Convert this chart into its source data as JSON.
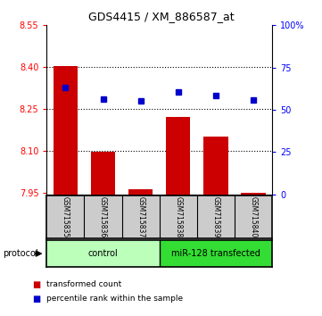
{
  "title": "GDS4415 / XM_886587_at",
  "samples": [
    "GSM715835",
    "GSM715836",
    "GSM715837",
    "GSM715838",
    "GSM715839",
    "GSM715840"
  ],
  "red_bar_top": [
    8.403,
    8.098,
    7.963,
    8.222,
    8.152,
    7.952
  ],
  "red_bar_bottom": 7.945,
  "blue_dot_y_left": [
    8.328,
    8.285,
    8.278,
    8.31,
    8.3,
    8.282
  ],
  "ylim_left": [
    7.945,
    8.55
  ],
  "ylim_right": [
    0,
    100
  ],
  "yticks_left": [
    7.95,
    8.1,
    8.25,
    8.4,
    8.55
  ],
  "yticks_right": [
    0,
    25,
    50,
    75,
    100
  ],
  "ytick_labels_right": [
    "0",
    "25",
    "50",
    "75",
    "100%"
  ],
  "control_label": "control",
  "transfected_label": "miR-128 transfected",
  "protocol_label": "protocol",
  "legend_red": "transformed count",
  "legend_blue": "percentile rank within the sample",
  "bar_color": "#cc0000",
  "dot_color": "#0000cc",
  "control_bg": "#bbffbb",
  "transfected_bg": "#33dd33",
  "sample_bg": "#cccccc",
  "grid_yticks": [
    8.1,
    8.25,
    8.4
  ],
  "bar_width": 0.65
}
